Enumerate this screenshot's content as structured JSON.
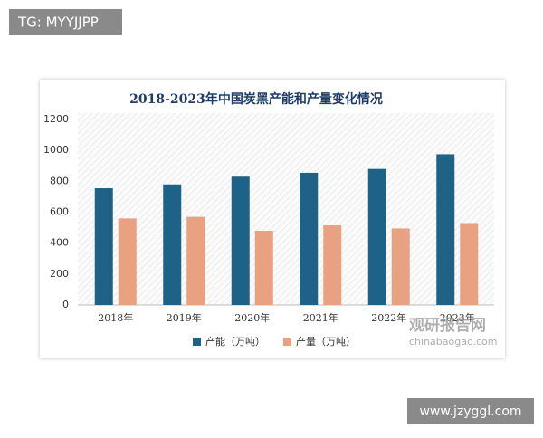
{
  "overlays": {
    "top_left": "TG: MYYJJPP",
    "bottom_right": "www.jzyggl.com"
  },
  "chart_data": {
    "type": "bar",
    "title": "2018-2023年中国炭黑产能和产量变化情况",
    "categories": [
      "2018年",
      "2019年",
      "2020年",
      "2021年",
      "2022年",
      "2023年"
    ],
    "series": [
      {
        "name": "产能（万吨）",
        "color": "#1f6288",
        "values": [
          755,
          780,
          830,
          855,
          880,
          975
        ]
      },
      {
        "name": "产量（万吨）",
        "color": "#e9a281",
        "values": [
          560,
          570,
          480,
          515,
          495,
          530
        ]
      }
    ],
    "ylim": [
      0,
      1200
    ],
    "yticks": [
      0,
      200,
      400,
      600,
      800,
      1000,
      1200
    ],
    "grid": false,
    "legend": "bottom",
    "watermark": [
      "观研报告网",
      "chinabaogao.com"
    ]
  }
}
